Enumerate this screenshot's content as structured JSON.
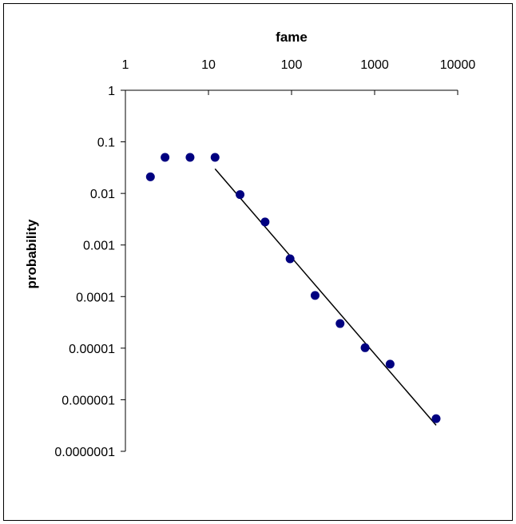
{
  "chart_data": {
    "type": "scatter",
    "xlabel": "fame",
    "ylabel": "probability",
    "x_scale": "log",
    "y_scale": "log",
    "xlim": [
      1,
      10000
    ],
    "ylim": [
      1e-07,
      1
    ],
    "x_axis_position": "top",
    "grid": false,
    "legend": "none",
    "x_ticks": [
      "1",
      "10",
      "100",
      "1000",
      "10000"
    ],
    "y_ticks": [
      "1",
      "0.1",
      "0.01",
      "0.001",
      "0.0001",
      "0.00001",
      "0.000001",
      "0.0000001"
    ],
    "series": [
      {
        "kind": "points",
        "color": "#000080",
        "x": [
          2,
          3,
          6,
          12,
          24,
          48,
          96,
          192,
          384,
          768,
          1536,
          5500
        ],
        "y": [
          0.021,
          0.05,
          0.05,
          0.05,
          0.0095,
          0.0028,
          0.00054,
          0.000105,
          3e-05,
          1.02e-05,
          4.9e-06,
          4.3e-07
        ]
      },
      {
        "kind": "fit-line",
        "color": "#000000",
        "x": [
          12,
          5500
        ],
        "y": [
          0.03,
          3.2e-07
        ]
      }
    ]
  }
}
